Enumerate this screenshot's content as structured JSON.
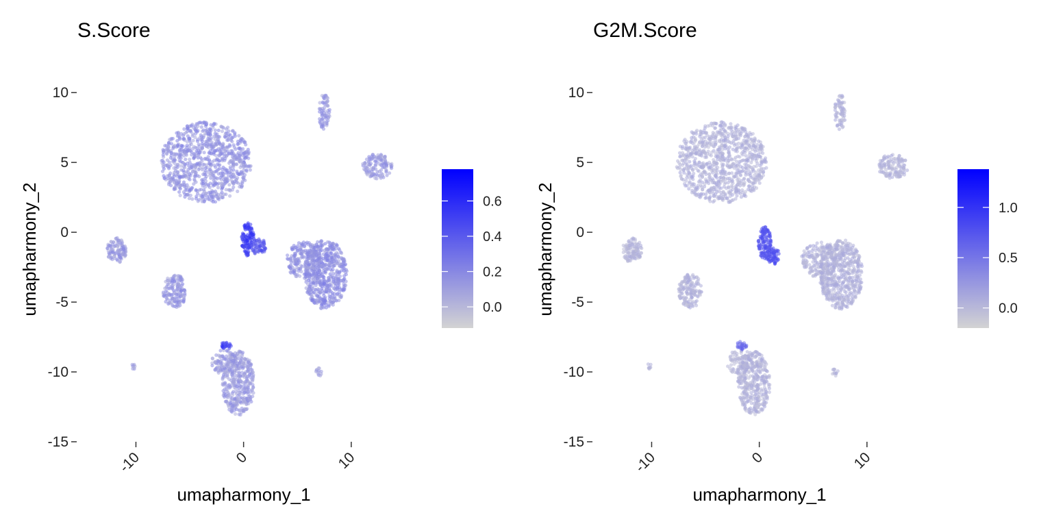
{
  "chart_data": [
    {
      "type": "scatter",
      "title": "S.Score",
      "xlabel": "umapharmony_1",
      "ylabel": "umapharmony_2",
      "xlim": [
        -15.5,
        13
      ],
      "ylim": [
        -15,
        10.5
      ],
      "x_ticks": [
        -10,
        0,
        10
      ],
      "x_tick_labels": [
        "-10",
        "0",
        "10"
      ],
      "y_ticks": [
        10,
        5,
        0,
        -5,
        -10,
        -15
      ],
      "y_tick_labels": [
        "10",
        "5",
        "0",
        "-5",
        "-10",
        "-15"
      ],
      "grid": false,
      "legend": "right",
      "colorbar": {
        "low_color": "#d3d3d3",
        "high_color": "#0000ff",
        "min": -0.12,
        "max": 0.78,
        "ticks": [
          0.0,
          0.2,
          0.4,
          0.6
        ],
        "tick_labels": [
          "0.0",
          "0.2",
          "0.4",
          "0.6"
        ]
      },
      "clusters": [
        {
          "shape": "blob",
          "cx": -3.5,
          "cy": 5.0,
          "rx": 4.2,
          "ry": 2.9,
          "n": 900,
          "value": 0.15
        },
        {
          "shape": "blob",
          "cx": 7.6,
          "cy": -3.0,
          "rx": 2.0,
          "ry": 2.5,
          "n": 550,
          "value": 0.17
        },
        {
          "shape": "blob",
          "cx": 5.6,
          "cy": -2.0,
          "rx": 1.7,
          "ry": 1.3,
          "n": 200,
          "value": 0.15
        },
        {
          "shape": "blob",
          "cx": 0.4,
          "cy": -0.5,
          "rx": 0.6,
          "ry": 1.2,
          "n": 120,
          "value": 0.5
        },
        {
          "shape": "blob",
          "cx": 1.4,
          "cy": -1.0,
          "rx": 0.7,
          "ry": 0.6,
          "n": 60,
          "value": 0.4
        },
        {
          "shape": "blob",
          "cx": -0.5,
          "cy": -10.8,
          "rx": 1.5,
          "ry": 2.3,
          "n": 380,
          "value": 0.12
        },
        {
          "shape": "blob",
          "cx": -1.8,
          "cy": -9.3,
          "rx": 1.2,
          "ry": 0.9,
          "n": 90,
          "value": 0.12
        },
        {
          "shape": "blob",
          "cx": -1.6,
          "cy": -8.1,
          "rx": 0.5,
          "ry": 0.3,
          "n": 25,
          "value": 0.5
        },
        {
          "shape": "blob",
          "cx": -6.4,
          "cy": -4.2,
          "rx": 1.1,
          "ry": 1.2,
          "n": 150,
          "value": 0.14
        },
        {
          "shape": "blob",
          "cx": -11.8,
          "cy": -1.3,
          "rx": 0.9,
          "ry": 0.9,
          "n": 110,
          "value": 0.12
        },
        {
          "shape": "blob",
          "cx": 12.4,
          "cy": 4.7,
          "rx": 1.4,
          "ry": 0.9,
          "n": 130,
          "value": 0.12
        },
        {
          "shape": "blob",
          "cx": 7.5,
          "cy": 8.6,
          "rx": 0.5,
          "ry": 1.3,
          "n": 70,
          "value": 0.12
        },
        {
          "shape": "blob",
          "cx": 7.0,
          "cy": -10.0,
          "rx": 0.3,
          "ry": 0.3,
          "n": 12,
          "value": 0.1
        },
        {
          "shape": "blob",
          "cx": -10.2,
          "cy": -9.6,
          "rx": 0.2,
          "ry": 0.2,
          "n": 8,
          "value": 0.1
        }
      ]
    },
    {
      "type": "scatter",
      "title": "G2M.Score",
      "xlabel": "umapharmony_1",
      "ylabel": "umapharmony_2",
      "xlim": [
        -15.5,
        13
      ],
      "ylim": [
        -15,
        10.5
      ],
      "x_ticks": [
        -10,
        0,
        10
      ],
      "x_tick_labels": [
        "-10",
        "0",
        "10"
      ],
      "y_ticks": [
        10,
        5,
        0,
        -5,
        -10,
        -15
      ],
      "y_tick_labels": [
        "10",
        "5",
        "0",
        "-5",
        "-10",
        "-15"
      ],
      "grid": false,
      "legend": "right",
      "colorbar": {
        "low_color": "#d3d3d3",
        "high_color": "#0000ff",
        "min": -0.2,
        "max": 1.38,
        "ticks": [
          0.0,
          0.5,
          1.0
        ],
        "tick_labels": [
          "0.0",
          "0.5",
          "1.0"
        ]
      },
      "clusters": [
        {
          "shape": "blob",
          "cx": -3.5,
          "cy": 5.0,
          "rx": 4.2,
          "ry": 2.9,
          "n": 900,
          "value": 0.05
        },
        {
          "shape": "blob",
          "cx": 7.6,
          "cy": -3.0,
          "rx": 2.0,
          "ry": 2.5,
          "n": 550,
          "value": 0.06
        },
        {
          "shape": "blob",
          "cx": 5.6,
          "cy": -2.0,
          "rx": 1.7,
          "ry": 1.3,
          "n": 200,
          "value": 0.05
        },
        {
          "shape": "blob",
          "cx": 0.5,
          "cy": -0.8,
          "rx": 0.6,
          "ry": 1.2,
          "n": 120,
          "value": 0.75
        },
        {
          "shape": "blob",
          "cx": 1.3,
          "cy": -1.7,
          "rx": 0.6,
          "ry": 0.6,
          "n": 60,
          "value": 0.8
        },
        {
          "shape": "blob",
          "cx": -0.5,
          "cy": -10.8,
          "rx": 1.5,
          "ry": 2.3,
          "n": 380,
          "value": 0.04
        },
        {
          "shape": "blob",
          "cx": -1.8,
          "cy": -9.3,
          "rx": 1.2,
          "ry": 0.9,
          "n": 90,
          "value": 0.04
        },
        {
          "shape": "blob",
          "cx": -1.6,
          "cy": -8.1,
          "rx": 0.5,
          "ry": 0.3,
          "n": 25,
          "value": 0.6
        },
        {
          "shape": "blob",
          "cx": -6.4,
          "cy": -4.2,
          "rx": 1.1,
          "ry": 1.2,
          "n": 150,
          "value": 0.04
        },
        {
          "shape": "blob",
          "cx": -11.8,
          "cy": -1.3,
          "rx": 0.9,
          "ry": 0.9,
          "n": 110,
          "value": 0.03
        },
        {
          "shape": "blob",
          "cx": 12.4,
          "cy": 4.7,
          "rx": 1.4,
          "ry": 0.9,
          "n": 130,
          "value": 0.04
        },
        {
          "shape": "blob",
          "cx": 7.5,
          "cy": 8.6,
          "rx": 0.5,
          "ry": 1.3,
          "n": 70,
          "value": 0.04
        },
        {
          "shape": "blob",
          "cx": 7.0,
          "cy": -10.0,
          "rx": 0.3,
          "ry": 0.3,
          "n": 12,
          "value": 0.03
        },
        {
          "shape": "blob",
          "cx": -10.2,
          "cy": -9.6,
          "rx": 0.2,
          "ry": 0.2,
          "n": 8,
          "value": 0.03
        }
      ]
    }
  ]
}
